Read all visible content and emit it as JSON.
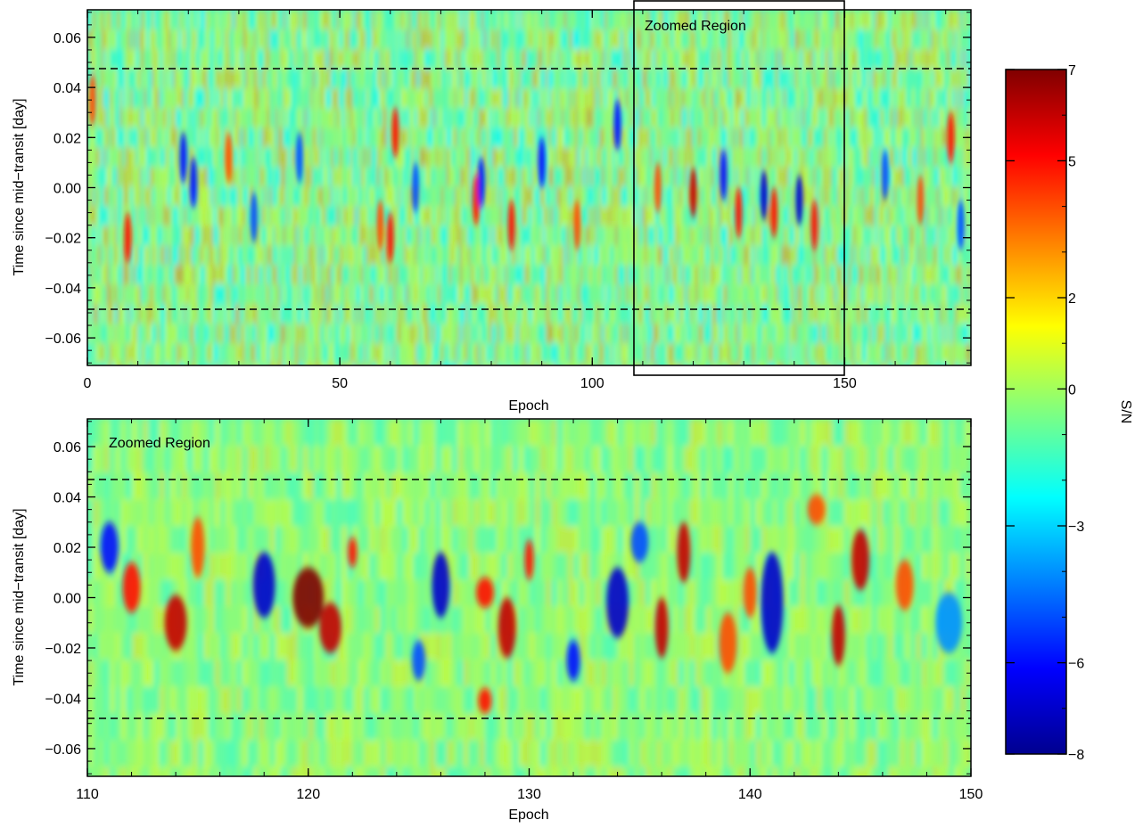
{
  "chart_data": [
    {
      "type": "heatmap",
      "title": "",
      "xlabel": "Epoch",
      "ylabel": "Time since mid−transit [day]",
      "xlim": [
        0,
        175
      ],
      "ylim": [
        -0.071,
        0.071
      ],
      "xticks": [
        0,
        50,
        100,
        150
      ],
      "xtick_labels": [
        "0",
        "50",
        "100",
        "150"
      ],
      "yticks": [
        -0.06,
        -0.04,
        -0.02,
        0.0,
        0.02,
        0.04,
        0.06
      ],
      "ytick_labels": [
        "−0.06",
        "−0.04",
        "−0.02",
        "0.00",
        "0.02",
        "0.04",
        "0.06"
      ],
      "hlines": [
        0.0475,
        -0.0475
      ],
      "zoom_box": {
        "x": [
          110,
          150
        ],
        "label": "Zoomed Region"
      },
      "features": [
        {
          "epoch": 1,
          "time": 0.035,
          "snr": 4
        },
        {
          "epoch": 8,
          "time": -0.02,
          "snr": 5
        },
        {
          "epoch": 19,
          "time": 0.012,
          "snr": -6
        },
        {
          "epoch": 21,
          "time": 0.002,
          "snr": -6
        },
        {
          "epoch": 28,
          "time": 0.012,
          "snr": 4
        },
        {
          "epoch": 33,
          "time": -0.012,
          "snr": -5
        },
        {
          "epoch": 42,
          "time": 0.012,
          "snr": -5
        },
        {
          "epoch": 58,
          "time": -0.015,
          "snr": 4
        },
        {
          "epoch": 60,
          "time": -0.02,
          "snr": 5
        },
        {
          "epoch": 61,
          "time": 0.022,
          "snr": 5
        },
        {
          "epoch": 65,
          "time": 0.0,
          "snr": -5
        },
        {
          "epoch": 77,
          "time": -0.005,
          "snr": 5
        },
        {
          "epoch": 78,
          "time": 0.002,
          "snr": -6
        },
        {
          "epoch": 84,
          "time": -0.015,
          "snr": 5
        },
        {
          "epoch": 90,
          "time": 0.01,
          "snr": -6
        },
        {
          "epoch": 97,
          "time": -0.015,
          "snr": 4
        },
        {
          "epoch": 105,
          "time": 0.025,
          "snr": -6
        },
        {
          "epoch": 113,
          "time": 0.0,
          "snr": 4
        },
        {
          "epoch": 120,
          "time": -0.002,
          "snr": 6
        },
        {
          "epoch": 126,
          "time": 0.005,
          "snr": -6
        },
        {
          "epoch": 129,
          "time": -0.01,
          "snr": 5
        },
        {
          "epoch": 134,
          "time": -0.003,
          "snr": -7
        },
        {
          "epoch": 136,
          "time": -0.01,
          "snr": 5
        },
        {
          "epoch": 141,
          "time": -0.005,
          "snr": -7
        },
        {
          "epoch": 144,
          "time": -0.015,
          "snr": 5
        },
        {
          "epoch": 158,
          "time": 0.005,
          "snr": -5
        },
        {
          "epoch": 165,
          "time": -0.005,
          "snr": 4
        },
        {
          "epoch": 171,
          "time": 0.02,
          "snr": 5
        },
        {
          "epoch": 173,
          "time": -0.015,
          "snr": -5
        }
      ]
    },
    {
      "type": "heatmap",
      "title": "",
      "xlabel": "Epoch",
      "ylabel": "Time since mid−transit [day]",
      "xlim": [
        110,
        150
      ],
      "ylim": [
        -0.071,
        0.071
      ],
      "xticks": [
        110,
        120,
        130,
        140,
        150
      ],
      "xtick_labels": [
        "110",
        "120",
        "130",
        "140",
        "150"
      ],
      "yticks": [
        -0.06,
        -0.04,
        -0.02,
        0.0,
        0.02,
        0.04,
        0.06
      ],
      "ytick_labels": [
        "−0.06",
        "−0.04",
        "−0.02",
        "0.00",
        "0.02",
        "0.04",
        "0.06"
      ],
      "hlines": [
        0.0475,
        -0.0475
      ],
      "annotation": "Zoomed Region",
      "features": [
        {
          "epoch": 111,
          "time": 0.02,
          "snr": -6,
          "we": 0.4,
          "wt": 0.01
        },
        {
          "epoch": 112,
          "time": 0.004,
          "snr": 5,
          "we": 0.4,
          "wt": 0.01
        },
        {
          "epoch": 114,
          "time": -0.01,
          "snr": 6,
          "we": 0.5,
          "wt": 0.011
        },
        {
          "epoch": 115,
          "time": 0.02,
          "snr": 4,
          "we": 0.3,
          "wt": 0.012
        },
        {
          "epoch": 118,
          "time": 0.005,
          "snr": -7,
          "we": 0.5,
          "wt": 0.013
        },
        {
          "epoch": 120,
          "time": 0.0,
          "snr": 7,
          "we": 0.7,
          "wt": 0.012
        },
        {
          "epoch": 121,
          "time": -0.012,
          "snr": 6,
          "we": 0.5,
          "wt": 0.01
        },
        {
          "epoch": 122,
          "time": 0.018,
          "snr": 5,
          "we": 0.2,
          "wt": 0.006
        },
        {
          "epoch": 126,
          "time": 0.005,
          "snr": -7,
          "we": 0.4,
          "wt": 0.013
        },
        {
          "epoch": 125,
          "time": -0.025,
          "snr": -5,
          "we": 0.3,
          "wt": 0.008
        },
        {
          "epoch": 128,
          "time": 0.002,
          "snr": 5,
          "we": 0.4,
          "wt": 0.006
        },
        {
          "epoch": 129,
          "time": -0.012,
          "snr": 6,
          "we": 0.4,
          "wt": 0.012
        },
        {
          "epoch": 130,
          "time": 0.015,
          "snr": 5,
          "we": 0.2,
          "wt": 0.008
        },
        {
          "epoch": 128,
          "time": -0.041,
          "snr": 5,
          "we": 0.3,
          "wt": 0.005
        },
        {
          "epoch": 134,
          "time": -0.002,
          "snr": -7,
          "we": 0.5,
          "wt": 0.014
        },
        {
          "epoch": 135,
          "time": 0.022,
          "snr": -5,
          "we": 0.4,
          "wt": 0.008
        },
        {
          "epoch": 132,
          "time": -0.025,
          "snr": -6,
          "we": 0.3,
          "wt": 0.008
        },
        {
          "epoch": 136,
          "time": -0.012,
          "snr": 6,
          "we": 0.3,
          "wt": 0.012
        },
        {
          "epoch": 137,
          "time": 0.018,
          "snr": 6,
          "we": 0.3,
          "wt": 0.012
        },
        {
          "epoch": 139,
          "time": -0.018,
          "snr": 4,
          "we": 0.4,
          "wt": 0.012
        },
        {
          "epoch": 140,
          "time": 0.002,
          "snr": 4,
          "we": 0.3,
          "wt": 0.01
        },
        {
          "epoch": 141,
          "time": -0.002,
          "snr": -7,
          "we": 0.5,
          "wt": 0.02
        },
        {
          "epoch": 144,
          "time": -0.015,
          "snr": 6,
          "we": 0.3,
          "wt": 0.012
        },
        {
          "epoch": 145,
          "time": 0.015,
          "snr": 6,
          "we": 0.4,
          "wt": 0.012
        },
        {
          "epoch": 143,
          "time": 0.035,
          "snr": 4,
          "we": 0.4,
          "wt": 0.006
        },
        {
          "epoch": 147,
          "time": 0.005,
          "snr": 4,
          "we": 0.4,
          "wt": 0.01
        },
        {
          "epoch": 149,
          "time": -0.01,
          "snr": -4,
          "we": 0.6,
          "wt": 0.012
        }
      ]
    }
  ],
  "colorbar": {
    "label": "S/N",
    "range": [
      -8,
      7
    ],
    "ticks": [
      7,
      5,
      2,
      0,
      -3,
      -6,
      -8
    ],
    "tick_labels": [
      "7",
      "5",
      "2",
      "0",
      "−3",
      "−6",
      "−8"
    ],
    "colormap": "jet",
    "colors": [
      "#00008f",
      "#0000ff",
      "#00ffff",
      "#ffff00",
      "#ff0000",
      "#800000"
    ]
  }
}
